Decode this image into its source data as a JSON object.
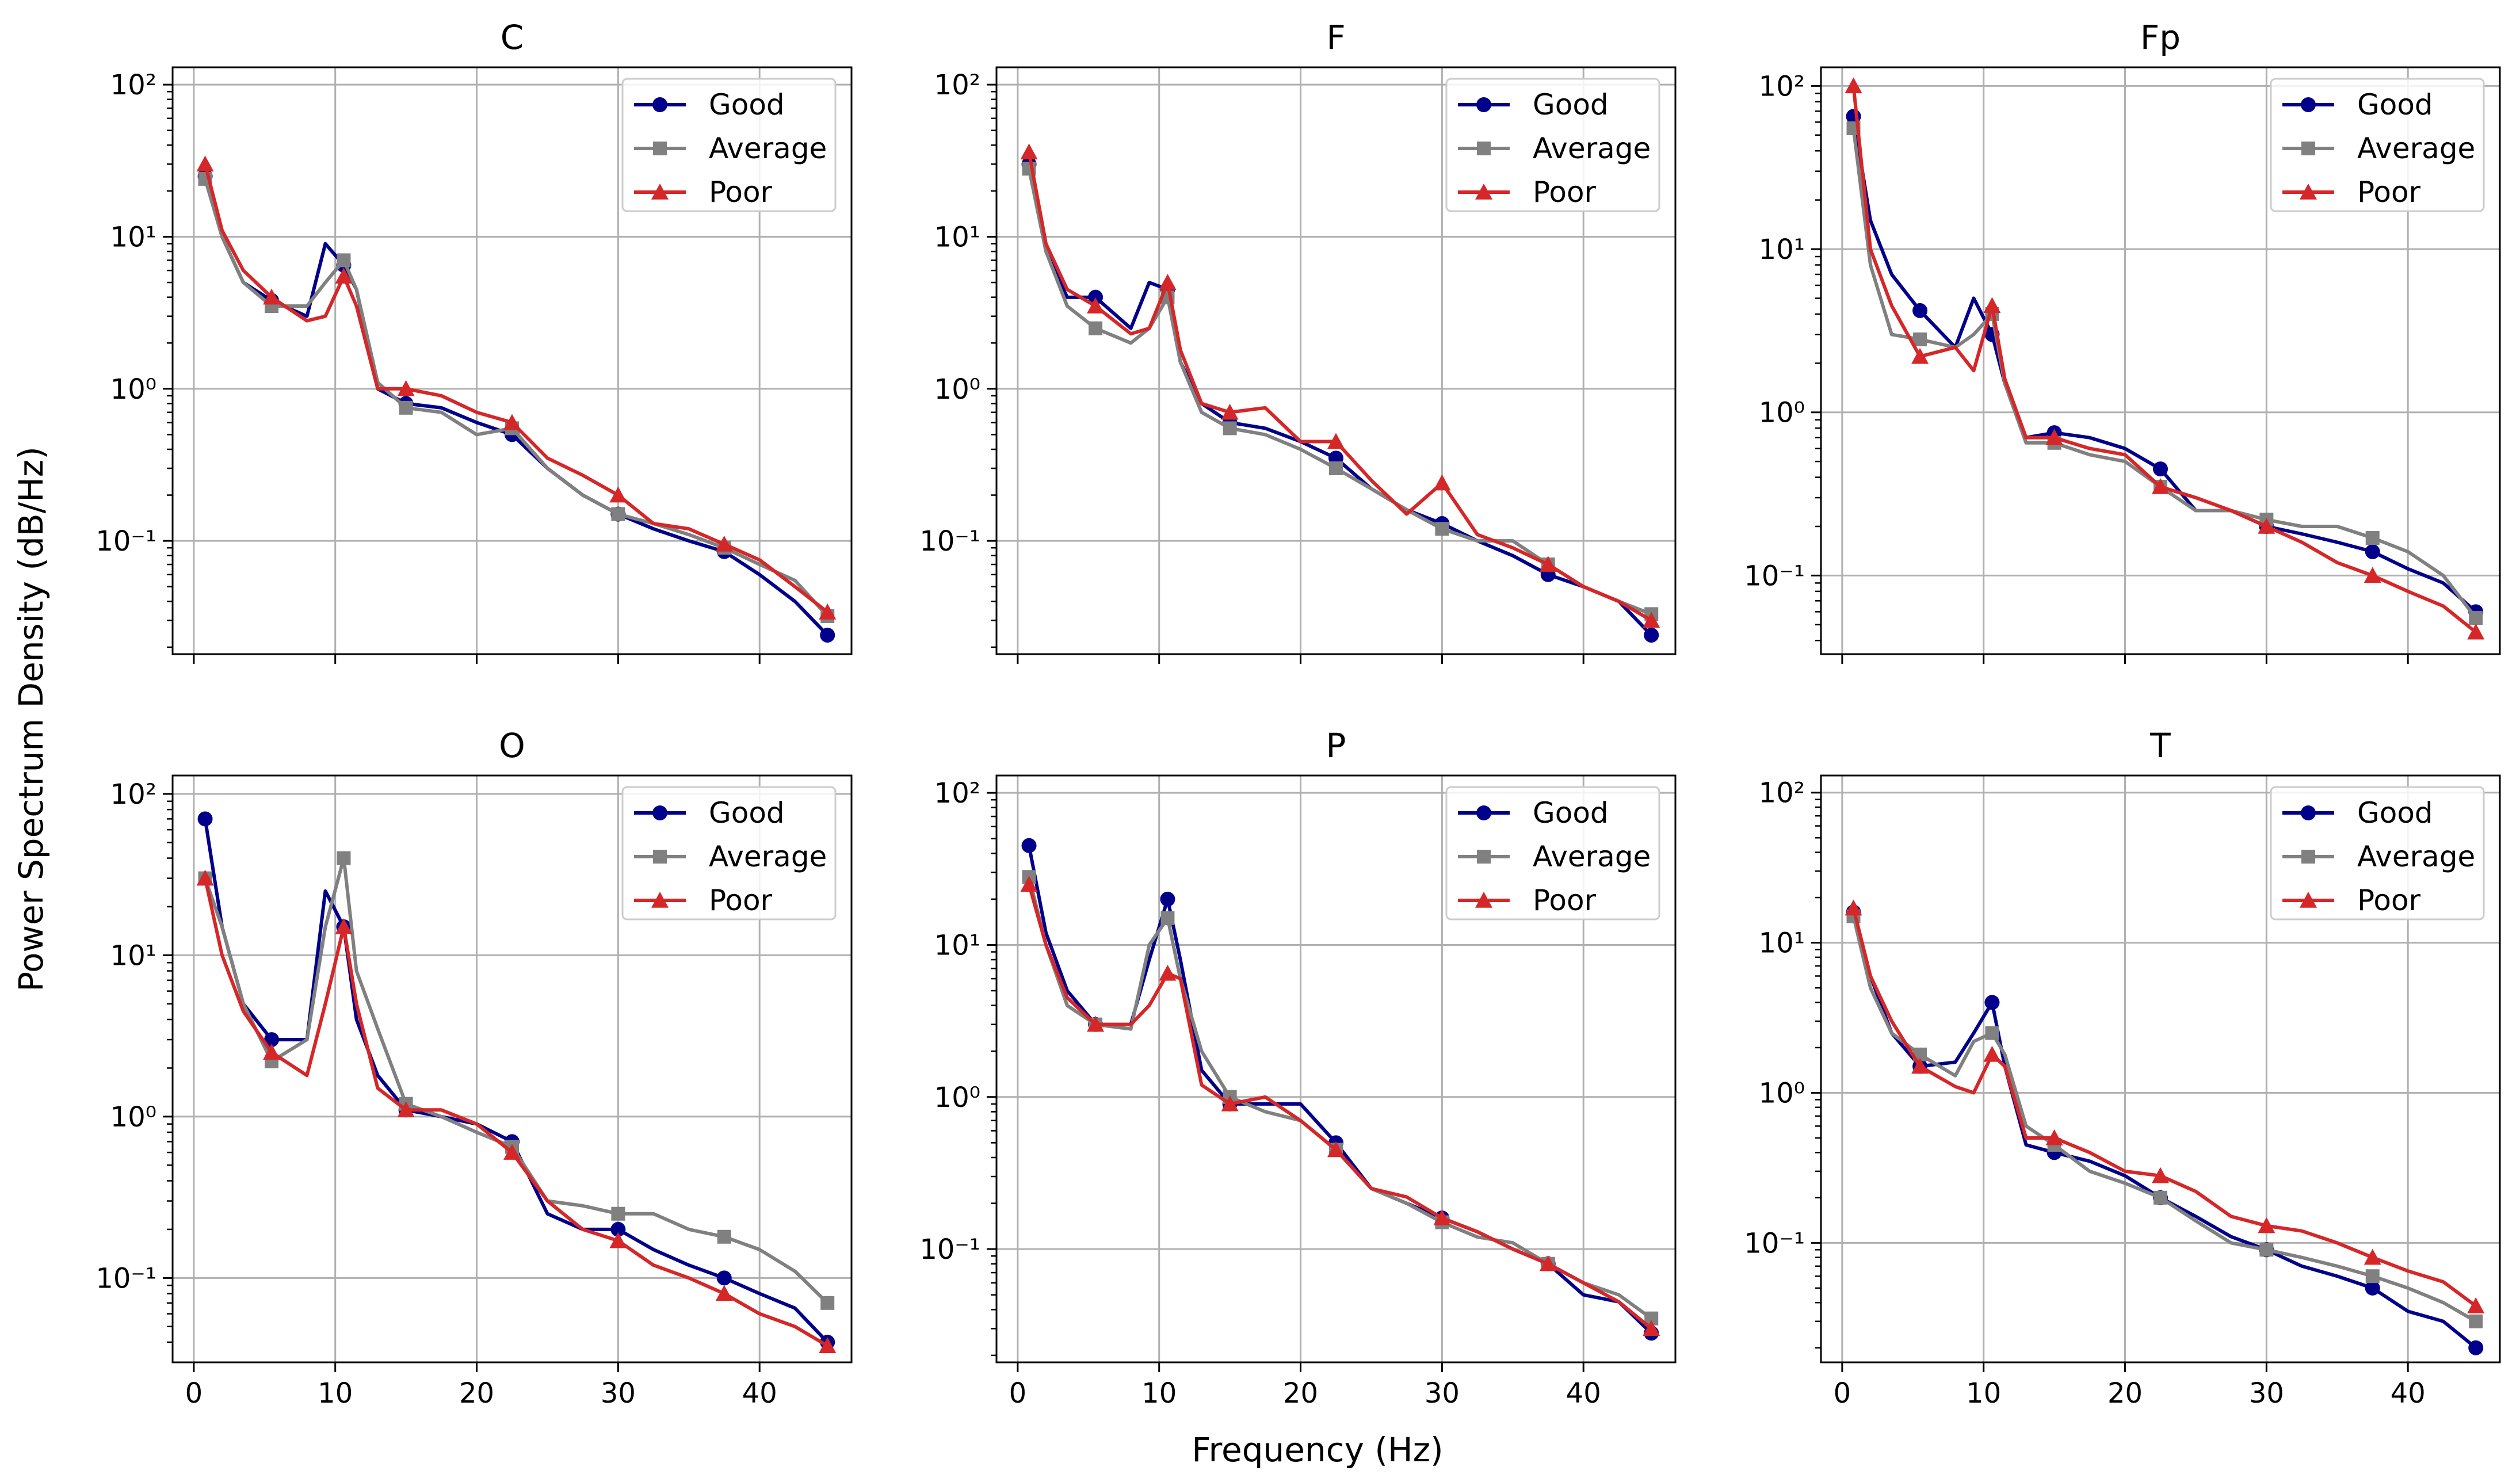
{
  "figure": {
    "ylabel": "Power Spectrum Density (dB/Hz)",
    "xlabel": "Frequency (Hz)"
  },
  "legend": {
    "location": "top-right",
    "entries": [
      "Good",
      "Average",
      "Poor"
    ]
  },
  "series_styles": [
    {
      "name": "Good",
      "color": "#00008B",
      "marker": "circle"
    },
    {
      "name": "Average",
      "color": "#808080",
      "marker": "square"
    },
    {
      "name": "Poor",
      "color": "#D62728",
      "marker": "triangle"
    }
  ],
  "chart_data": [
    {
      "type": "line",
      "title": "C",
      "yscale": "log",
      "xlim": [
        -1.5,
        46.5
      ],
      "ylim": [
        0.018,
        130
      ],
      "xticks": [
        0,
        10,
        20,
        30,
        40
      ],
      "xtick_labels": [
        "0",
        "10",
        "20",
        "30",
        "40"
      ],
      "yticks": [
        0.1,
        1,
        10,
        100
      ],
      "ytick_labels": [
        "10⁻¹",
        "10⁰",
        "10¹",
        "10²"
      ],
      "x": [
        0.8,
        2,
        3.5,
        5.5,
        8,
        9.3,
        10.6,
        11.5,
        13,
        15,
        17.5,
        20,
        22.5,
        25,
        27.5,
        30,
        32.5,
        35,
        37.5,
        40,
        42.5,
        44.8
      ],
      "series": [
        {
          "name": "Good",
          "values": [
            25,
            10,
            5,
            3.8,
            3,
            9,
            6.5,
            4.5,
            1,
            0.8,
            0.75,
            0.6,
            0.5,
            0.3,
            0.2,
            0.15,
            0.12,
            0.1,
            0.085,
            0.06,
            0.04,
            0.024
          ]
        },
        {
          "name": "Average",
          "values": [
            24,
            10,
            5,
            3.5,
            3.5,
            5,
            7,
            4.5,
            1.1,
            0.75,
            0.7,
            0.5,
            0.55,
            0.3,
            0.2,
            0.15,
            0.13,
            0.11,
            0.09,
            0.07,
            0.055,
            0.032
          ]
        },
        {
          "name": "Poor",
          "values": [
            30,
            11,
            6,
            4,
            2.8,
            3,
            5.5,
            3.5,
            1,
            1,
            0.9,
            0.7,
            0.6,
            0.35,
            0.27,
            0.2,
            0.13,
            0.12,
            0.095,
            0.075,
            0.05,
            0.034
          ]
        }
      ]
    },
    {
      "type": "line",
      "title": "F",
      "yscale": "log",
      "xlim": [
        -1.5,
        46.5
      ],
      "ylim": [
        0.018,
        130
      ],
      "xticks": [
        0,
        10,
        20,
        30,
        40
      ],
      "xtick_labels": [
        "0",
        "10",
        "20",
        "30",
        "40"
      ],
      "yticks": [
        0.1,
        1,
        10,
        100
      ],
      "ytick_labels": [
        "10⁻¹",
        "10⁰",
        "10¹",
        "10²"
      ],
      "x": [
        0.8,
        2,
        3.5,
        5.5,
        8,
        9.3,
        10.6,
        11.5,
        13,
        15,
        17.5,
        20,
        22.5,
        25,
        27.5,
        30,
        32.5,
        35,
        37.5,
        40,
        42.5,
        44.8
      ],
      "series": [
        {
          "name": "Good",
          "values": [
            30,
            8,
            4,
            4,
            2.5,
            5,
            4.5,
            1.5,
            0.8,
            0.6,
            0.55,
            0.45,
            0.35,
            0.22,
            0.16,
            0.13,
            0.1,
            0.08,
            0.06,
            0.05,
            0.04,
            0.024
          ]
        },
        {
          "name": "Average",
          "values": [
            28,
            8,
            3.5,
            2.5,
            2,
            2.5,
            4,
            1.5,
            0.7,
            0.55,
            0.5,
            0.4,
            0.3,
            0.22,
            0.16,
            0.12,
            0.1,
            0.1,
            0.07,
            0.05,
            0.04,
            0.033
          ]
        },
        {
          "name": "Poor",
          "values": [
            36,
            9,
            4.5,
            3.5,
            2.3,
            2.5,
            5,
            1.8,
            0.8,
            0.7,
            0.75,
            0.45,
            0.45,
            0.25,
            0.15,
            0.24,
            0.11,
            0.09,
            0.07,
            0.05,
            0.04,
            0.03
          ]
        }
      ]
    },
    {
      "type": "line",
      "title": "Fp",
      "yscale": "log",
      "xlim": [
        -1.5,
        46.5
      ],
      "ylim": [
        0.033,
        130
      ],
      "xticks": [
        0,
        10,
        20,
        30,
        40
      ],
      "xtick_labels": [
        "0",
        "10",
        "20",
        "30",
        "40"
      ],
      "yticks": [
        0.1,
        1,
        10,
        100
      ],
      "ytick_labels": [
        "10⁻¹",
        "10⁰",
        "10¹",
        "10²"
      ],
      "x": [
        0.8,
        2,
        3.5,
        5.5,
        8,
        9.3,
        10.6,
        11.5,
        13,
        15,
        17.5,
        20,
        22.5,
        25,
        27.5,
        30,
        32.5,
        35,
        37.5,
        40,
        42.5,
        44.8
      ],
      "series": [
        {
          "name": "Good",
          "values": [
            65,
            15,
            7,
            4.2,
            2.5,
            5,
            3,
            1.5,
            0.7,
            0.75,
            0.7,
            0.6,
            0.45,
            0.25,
            0.25,
            0.2,
            0.18,
            0.16,
            0.14,
            0.11,
            0.09,
            0.06
          ]
        },
        {
          "name": "Average",
          "values": [
            55,
            8,
            3,
            2.8,
            2.5,
            3,
            4,
            1.5,
            0.65,
            0.65,
            0.55,
            0.5,
            0.35,
            0.25,
            0.25,
            0.22,
            0.2,
            0.2,
            0.17,
            0.14,
            0.1,
            0.055
          ]
        },
        {
          "name": "Poor",
          "values": [
            100,
            10,
            4.5,
            2.2,
            2.5,
            1.8,
            4.5,
            1.6,
            0.7,
            0.7,
            0.6,
            0.55,
            0.35,
            0.3,
            0.25,
            0.2,
            0.16,
            0.12,
            0.1,
            0.08,
            0.065,
            0.045
          ]
        }
      ]
    },
    {
      "type": "line",
      "title": "O",
      "yscale": "log",
      "xlim": [
        -1.5,
        46.5
      ],
      "ylim": [
        0.03,
        130
      ],
      "xticks": [
        0,
        10,
        20,
        30,
        40
      ],
      "xtick_labels": [
        "0",
        "10",
        "20",
        "30",
        "40"
      ],
      "yticks": [
        0.1,
        1,
        10,
        100
      ],
      "ytick_labels": [
        "10⁻¹",
        "10⁰",
        "10¹",
        "10²"
      ],
      "x": [
        0.8,
        2,
        3.5,
        5.5,
        8,
        9.3,
        10.6,
        11.5,
        13,
        15,
        17.5,
        20,
        22.5,
        25,
        27.5,
        30,
        32.5,
        35,
        37.5,
        40,
        42.5,
        44.8
      ],
      "series": [
        {
          "name": "Good",
          "values": [
            70,
            15,
            5,
            3,
            3,
            25,
            15,
            4,
            1.8,
            1.1,
            1,
            0.9,
            0.7,
            0.25,
            0.2,
            0.2,
            0.15,
            0.12,
            0.1,
            0.08,
            0.065,
            0.04
          ]
        },
        {
          "name": "Average",
          "values": [
            30,
            15,
            5,
            2.2,
            3,
            15,
            40,
            8,
            3.5,
            1.2,
            1,
            0.8,
            0.65,
            0.3,
            0.28,
            0.25,
            0.25,
            0.2,
            0.18,
            0.15,
            0.11,
            0.07
          ]
        },
        {
          "name": "Poor",
          "values": [
            30,
            10,
            4.5,
            2.5,
            1.8,
            5,
            15,
            5,
            1.5,
            1.1,
            1.1,
            0.9,
            0.6,
            0.3,
            0.2,
            0.17,
            0.12,
            0.1,
            0.08,
            0.06,
            0.05,
            0.038
          ]
        }
      ]
    },
    {
      "type": "line",
      "title": "P",
      "yscale": "log",
      "xlim": [
        -1.5,
        46.5
      ],
      "ylim": [
        0.018,
        130
      ],
      "xticks": [
        0,
        10,
        20,
        30,
        40
      ],
      "xtick_labels": [
        "0",
        "10",
        "20",
        "30",
        "40"
      ],
      "yticks": [
        0.1,
        1,
        10,
        100
      ],
      "ytick_labels": [
        "10⁻¹",
        "10⁰",
        "10¹",
        "10²"
      ],
      "x": [
        0.8,
        2,
        3.5,
        5.5,
        8,
        9.3,
        10.6,
        11.5,
        13,
        15,
        17.5,
        20,
        22.5,
        25,
        27.5,
        30,
        32.5,
        35,
        37.5,
        40,
        42.5,
        44.8
      ],
      "series": [
        {
          "name": "Good",
          "values": [
            45,
            12,
            5,
            3,
            3,
            8,
            20,
            8,
            1.5,
            0.9,
            0.9,
            0.9,
            0.5,
            0.25,
            0.2,
            0.16,
            0.13,
            0.1,
            0.08,
            0.05,
            0.045,
            0.028
          ]
        },
        {
          "name": "Average",
          "values": [
            28,
            10,
            4,
            3,
            2.8,
            10,
            15,
            6,
            2,
            1,
            0.8,
            0.7,
            0.45,
            0.25,
            0.2,
            0.15,
            0.12,
            0.11,
            0.08,
            0.06,
            0.05,
            0.035
          ]
        },
        {
          "name": "Poor",
          "values": [
            25,
            10,
            4.5,
            3,
            3,
            4,
            6.5,
            6,
            1.2,
            0.9,
            1,
            0.7,
            0.45,
            0.25,
            0.22,
            0.16,
            0.13,
            0.1,
            0.08,
            0.06,
            0.045,
            0.03
          ]
        }
      ]
    },
    {
      "type": "line",
      "title": "T",
      "yscale": "log",
      "xlim": [
        -1.5,
        46.5
      ],
      "ylim": [
        0.016,
        130
      ],
      "xticks": [
        0,
        10,
        20,
        30,
        40
      ],
      "xtick_labels": [
        "0",
        "10",
        "20",
        "30",
        "40"
      ],
      "yticks": [
        0.1,
        1,
        10,
        100
      ],
      "ytick_labels": [
        "10⁻¹",
        "10⁰",
        "10¹",
        "10²"
      ],
      "x": [
        0.8,
        2,
        3.5,
        5.5,
        8,
        9.3,
        10.6,
        11.5,
        13,
        15,
        17.5,
        20,
        22.5,
        25,
        27.5,
        30,
        32.5,
        35,
        37.5,
        40,
        42.5,
        44.8
      ],
      "series": [
        {
          "name": "Good",
          "values": [
            16,
            6,
            2.5,
            1.5,
            1.6,
            2.5,
            4,
            1.5,
            0.45,
            0.4,
            0.35,
            0.28,
            0.2,
            0.15,
            0.11,
            0.09,
            0.07,
            0.06,
            0.05,
            0.035,
            0.03,
            0.02
          ]
        },
        {
          "name": "Average",
          "values": [
            15,
            5,
            2.5,
            1.8,
            1.3,
            2.2,
            2.5,
            1.8,
            0.6,
            0.45,
            0.3,
            0.25,
            0.2,
            0.14,
            0.1,
            0.09,
            0.08,
            0.07,
            0.06,
            0.05,
            0.04,
            0.03
          ]
        },
        {
          "name": "Poor",
          "values": [
            17,
            6,
            3,
            1.5,
            1.1,
            1,
            1.8,
            1.5,
            0.5,
            0.5,
            0.4,
            0.3,
            0.28,
            0.22,
            0.15,
            0.13,
            0.12,
            0.1,
            0.08,
            0.065,
            0.055,
            0.038
          ]
        }
      ]
    }
  ]
}
